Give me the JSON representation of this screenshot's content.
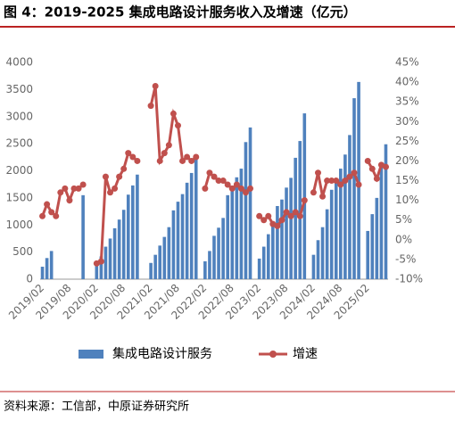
{
  "chart_data": {
    "type": "bar_line",
    "title": "图 4：2019-2025 集成电路设计服务收入及增速（亿元）",
    "source": "资料来源：工信部，中原证券研究所",
    "categories": [
      "2019/02",
      null,
      null,
      null,
      null,
      null,
      "2019/08",
      null,
      null,
      null,
      null,
      null,
      "2020/02",
      null,
      null,
      null,
      null,
      null,
      "2020/08",
      null,
      null,
      null,
      null,
      null,
      "2021/02",
      null,
      null,
      null,
      null,
      null,
      "2021/08",
      null,
      null,
      null,
      null,
      null,
      "2022/02",
      null,
      null,
      null,
      null,
      null,
      "2022/08",
      null,
      null,
      null,
      null,
      null,
      "2023/02",
      null,
      null,
      null,
      null,
      null,
      "2023/08",
      null,
      null,
      null,
      null,
      null,
      "2024/02",
      null,
      null,
      null,
      null,
      null,
      "2024/08",
      null,
      null,
      null,
      null,
      null,
      "2025/02",
      null,
      null,
      null,
      null
    ],
    "series": [
      {
        "name": "集成电路设计服务",
        "type": "bar",
        "color": "#4f81bd",
        "values": [
          230,
          390,
          520,
          null,
          null,
          null,
          null,
          null,
          null,
          1550,
          null,
          null,
          250,
          420,
          600,
          750,
          940,
          1100,
          1280,
          1560,
          1730,
          1930,
          null,
          null,
          300,
          450,
          620,
          780,
          960,
          1270,
          1430,
          1570,
          1780,
          1960,
          2250,
          null,
          330,
          520,
          800,
          950,
          1130,
          1550,
          1720,
          1880,
          2040,
          2530,
          2800,
          null,
          380,
          600,
          830,
          1000,
          1350,
          1470,
          1690,
          1870,
          2240,
          2550,
          3060,
          null,
          450,
          720,
          960,
          1290,
          1650,
          1780,
          2040,
          2300,
          2660,
          3340,
          3640,
          null,
          890,
          1200,
          1500,
          2120,
          2490
        ]
      },
      {
        "name": "增速",
        "type": "line",
        "axis": "y2",
        "color": "#c0504d",
        "values": [
          6,
          9,
          7,
          6,
          12,
          13,
          10,
          13,
          13,
          14,
          null,
          null,
          -6,
          -5.5,
          16,
          12,
          13,
          16,
          18,
          22,
          21,
          20,
          null,
          null,
          34,
          39,
          20,
          22,
          24,
          32,
          29,
          20,
          21,
          20,
          21,
          null,
          13,
          17,
          16,
          15,
          15,
          14,
          13,
          14,
          13,
          12,
          13,
          null,
          6,
          5,
          6,
          4,
          3.5,
          5,
          7,
          6,
          7,
          6,
          10,
          null,
          12,
          17,
          11,
          15,
          15,
          15,
          14,
          15,
          16,
          17,
          14,
          null,
          20,
          18,
          15.5,
          19,
          18.5
        ]
      }
    ],
    "ylim": [
      0,
      4000
    ],
    "yticks": [
      0,
      500,
      1000,
      1500,
      2000,
      2500,
      3000,
      3500,
      4000
    ],
    "y2lim": [
      -10,
      45
    ],
    "y2ticks": [
      {
        "value": -10,
        "label": "-10%"
      },
      {
        "value": -5,
        "label": "-5%"
      },
      {
        "value": 0,
        "label": "0%"
      },
      {
        "value": 5,
        "label": "5%"
      },
      {
        "value": 10,
        "label": "10%"
      },
      {
        "value": 15,
        "label": "15%"
      },
      {
        "value": 20,
        "label": "20%"
      },
      {
        "value": 25,
        "label": "25%"
      },
      {
        "value": 30,
        "label": "30%"
      },
      {
        "value": 35,
        "label": "35%"
      },
      {
        "value": 40,
        "label": "40%"
      },
      {
        "value": 45,
        "label": "45%"
      }
    ],
    "legend": "bottom"
  }
}
